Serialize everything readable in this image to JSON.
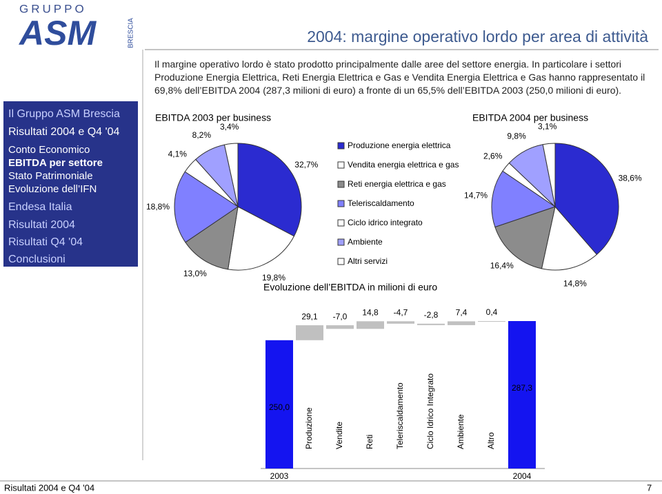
{
  "logo": {
    "top": "GRUPPO",
    "main": "ASM",
    "side": "BRESCIA"
  },
  "title": "2004: margine operativo lordo per area di attività",
  "sidebar": [
    "Il Gruppo ASM Brescia",
    "Risultati 2004 e Q4 '04",
    "Conto Economico",
    "EBITDA per settore",
    "Stato Patrimoniale",
    "Evoluzione dell’IFN",
    "Endesa Italia",
    "Risultati 2004",
    "Risultati Q4 '04",
    "Conclusioni"
  ],
  "intro": "Il margine operativo lordo è stato prodotto principalmente dalle aree del settore energia. In particolare i settori Produzione Energia Elettrica, Reti Energia Elettrica e Gas e Vendita Energia Elettrica e Gas hanno rappresentato il 69,8% dell’EBITDA 2004 (287,3 milioni di euro) a fronte di un 65,5% dell’EBITDA 2003 (250,0 milioni di euro).",
  "chart_data": [
    {
      "type": "pie",
      "title": "EBITDA 2003 per business",
      "categories": [
        "Produzione energia elettrica",
        "Vendita energia elettrica e gas",
        "Reti energia elettrica e gas",
        "Teleriscaldamento",
        "Ciclo idrico integrato",
        "Ambiente",
        "Altri servizi"
      ],
      "colors": [
        "#2b2bd0",
        "#ffffff",
        "#8c8c8c",
        "#8080ff",
        "#ffffff",
        "#a0a0ff",
        "#ffffff"
      ],
      "values": [
        32.7,
        19.8,
        13.0,
        18.8,
        4.1,
        8.2,
        3.4
      ],
      "value_labels": [
        "32,7%",
        "19,8%",
        "13,0%",
        "18,8%",
        "4,1%",
        "8,2%",
        "3,4%"
      ]
    },
    {
      "type": "pie",
      "title": "EBITDA 2004 per business",
      "categories": [
        "Produzione energia elettrica",
        "Vendita energia elettrica e gas",
        "Reti energia elettrica e gas",
        "Teleriscaldamento",
        "Ciclo idrico integrato",
        "Ambiente",
        "Altri servizi"
      ],
      "colors": [
        "#2b2bd0",
        "#ffffff",
        "#8c8c8c",
        "#8080ff",
        "#ffffff",
        "#a0a0ff",
        "#ffffff"
      ],
      "values": [
        38.6,
        14.8,
        16.4,
        14.7,
        2.6,
        9.8,
        3.1
      ],
      "value_labels": [
        "38,6%",
        "14,8%",
        "16,4%",
        "14,7%",
        "2,6%",
        "9,8%",
        "3,1%"
      ]
    },
    {
      "type": "waterfall",
      "title": "Evoluzione dell’EBITDA in milioni di euro",
      "categories": [
        "2003",
        "Produzione",
        "Vendite",
        "Reti",
        "Teleriscaldamento",
        "Ciclo Idrico Integrato",
        "Ambiente",
        "Altro",
        "2004"
      ],
      "values": [
        250.0,
        29.1,
        -7.0,
        14.8,
        -4.7,
        -2.8,
        7.4,
        0.4,
        287.3
      ],
      "value_labels": [
        "250,0",
        "29,1",
        "-7,0",
        "14,8",
        "-4,7",
        "-2,8",
        "7,4",
        "0,4",
        "287,3"
      ],
      "total_color": "#1414f0",
      "step_color": "#c0c0c0"
    }
  ],
  "footer": {
    "left": "Risultati 2004 e Q4 '04",
    "page": "7"
  }
}
